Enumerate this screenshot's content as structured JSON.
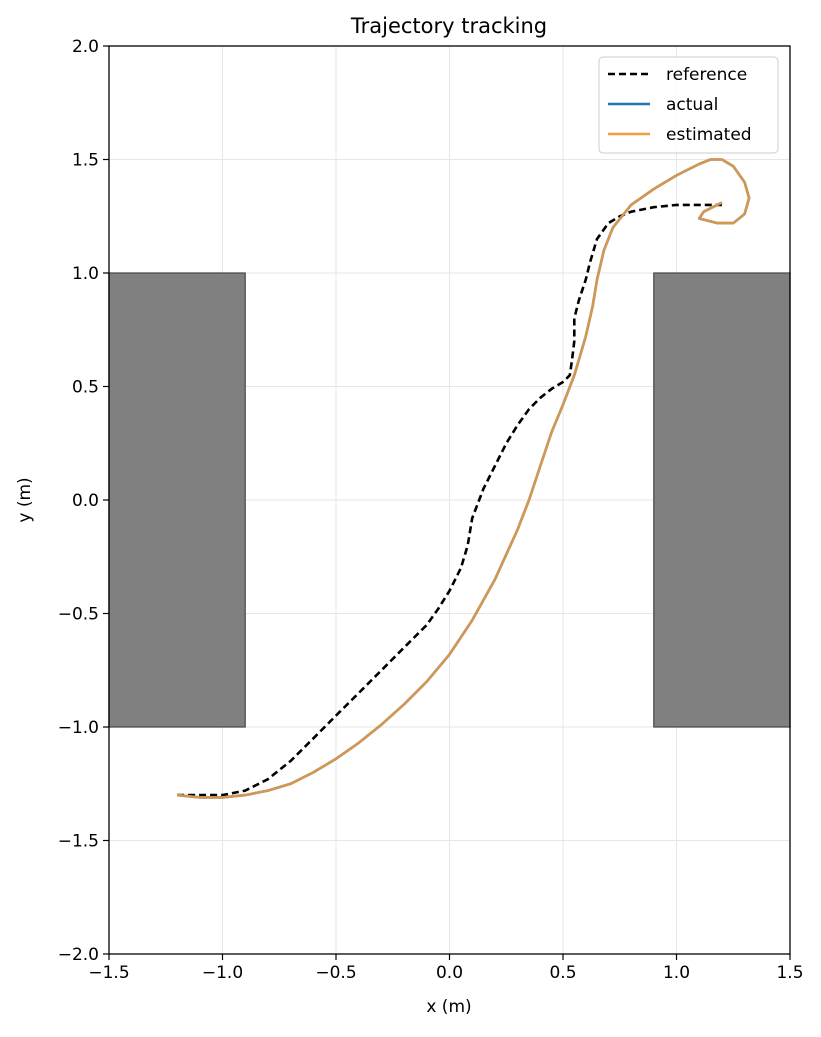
{
  "chart_data": {
    "type": "line",
    "title": "Trajectory tracking",
    "xlabel": "x (m)",
    "ylabel": "y (m)",
    "xlim": [
      -1.5,
      1.5
    ],
    "ylim": [
      -2.0,
      2.0
    ],
    "xticks": [
      -1.5,
      -1.0,
      -0.5,
      0.0,
      0.5,
      1.0,
      1.5
    ],
    "yticks": [
      -2.0,
      -1.5,
      -1.0,
      -0.5,
      0.0,
      0.5,
      1.0,
      1.5,
      2.0
    ],
    "xtick_labels": [
      "−1.5",
      "−1.0",
      "−0.5",
      "0.0",
      "0.5",
      "1.0",
      "1.5"
    ],
    "ytick_labels": [
      "−2.0",
      "−1.5",
      "−1.0",
      "−0.5",
      "0.0",
      "0.5",
      "1.0",
      "1.5",
      "2.0"
    ],
    "grid": true,
    "legend_position": "top-right",
    "obstacles": [
      {
        "x": [
          -1.5,
          -0.9
        ],
        "y": [
          -1.0,
          1.0
        ],
        "color": "#808080"
      },
      {
        "x": [
          0.9,
          1.5
        ],
        "y": [
          -1.0,
          1.0
        ],
        "color": "#808080"
      }
    ],
    "series": [
      {
        "name": "reference",
        "style": "dashed",
        "color": "#000000",
        "x": [
          -1.2,
          -1.1,
          -1.0,
          -0.9,
          -0.8,
          -0.7,
          -0.6,
          -0.5,
          -0.4,
          -0.3,
          -0.2,
          -0.1,
          -0.05,
          0.0,
          0.05,
          0.08,
          0.1,
          0.15,
          0.2,
          0.25,
          0.3,
          0.35,
          0.4,
          0.45,
          0.5,
          0.53,
          0.54,
          0.55,
          0.55,
          0.57,
          0.6,
          0.62,
          0.65,
          0.7,
          0.75,
          0.8,
          0.9,
          1.0,
          1.1,
          1.2
        ],
        "y": [
          -1.3,
          -1.3,
          -1.3,
          -1.28,
          -1.23,
          -1.15,
          -1.05,
          -0.95,
          -0.85,
          -0.75,
          -0.65,
          -0.55,
          -0.48,
          -0.4,
          -0.3,
          -0.2,
          -0.08,
          0.05,
          0.15,
          0.25,
          0.33,
          0.4,
          0.45,
          0.49,
          0.52,
          0.55,
          0.62,
          0.7,
          0.8,
          0.88,
          0.97,
          1.05,
          1.15,
          1.22,
          1.25,
          1.27,
          1.29,
          1.3,
          1.3,
          1.3
        ]
      },
      {
        "name": "actual",
        "style": "solid",
        "color": "#1f77b4",
        "x": [
          -1.2,
          -1.1,
          -1.0,
          -0.9,
          -0.8,
          -0.7,
          -0.6,
          -0.5,
          -0.4,
          -0.3,
          -0.2,
          -0.1,
          0.0,
          0.1,
          0.2,
          0.3,
          0.35,
          0.4,
          0.45,
          0.5,
          0.55,
          0.6,
          0.63,
          0.65,
          0.68,
          0.72,
          0.8,
          0.9,
          1.0,
          1.1,
          1.15,
          1.2,
          1.25,
          1.3,
          1.32,
          1.3,
          1.25,
          1.18,
          1.1,
          1.12,
          1.2
        ],
        "y": [
          -1.3,
          -1.31,
          -1.31,
          -1.3,
          -1.28,
          -1.25,
          -1.2,
          -1.14,
          -1.07,
          -0.99,
          -0.9,
          -0.8,
          -0.68,
          -0.53,
          -0.35,
          -0.13,
          0.0,
          0.15,
          0.3,
          0.42,
          0.55,
          0.72,
          0.85,
          0.97,
          1.1,
          1.2,
          1.3,
          1.37,
          1.43,
          1.48,
          1.5,
          1.5,
          1.47,
          1.4,
          1.33,
          1.26,
          1.22,
          1.22,
          1.24,
          1.27,
          1.31
        ]
      },
      {
        "name": "estimated",
        "style": "solid",
        "color": "#f39c3f",
        "x": [
          -1.2,
          -1.1,
          -1.0,
          -0.9,
          -0.8,
          -0.7,
          -0.6,
          -0.5,
          -0.4,
          -0.3,
          -0.2,
          -0.1,
          0.0,
          0.1,
          0.2,
          0.3,
          0.35,
          0.4,
          0.45,
          0.5,
          0.55,
          0.6,
          0.63,
          0.65,
          0.68,
          0.72,
          0.8,
          0.9,
          1.0,
          1.1,
          1.15,
          1.2,
          1.25,
          1.3,
          1.32,
          1.3,
          1.25,
          1.18,
          1.1,
          1.12,
          1.2
        ],
        "y": [
          -1.3,
          -1.31,
          -1.31,
          -1.3,
          -1.28,
          -1.25,
          -1.2,
          -1.14,
          -1.07,
          -0.99,
          -0.9,
          -0.8,
          -0.68,
          -0.53,
          -0.35,
          -0.13,
          0.0,
          0.15,
          0.3,
          0.42,
          0.55,
          0.72,
          0.85,
          0.97,
          1.1,
          1.2,
          1.3,
          1.37,
          1.43,
          1.48,
          1.5,
          1.5,
          1.47,
          1.4,
          1.33,
          1.26,
          1.22,
          1.22,
          1.24,
          1.27,
          1.31
        ]
      }
    ]
  }
}
